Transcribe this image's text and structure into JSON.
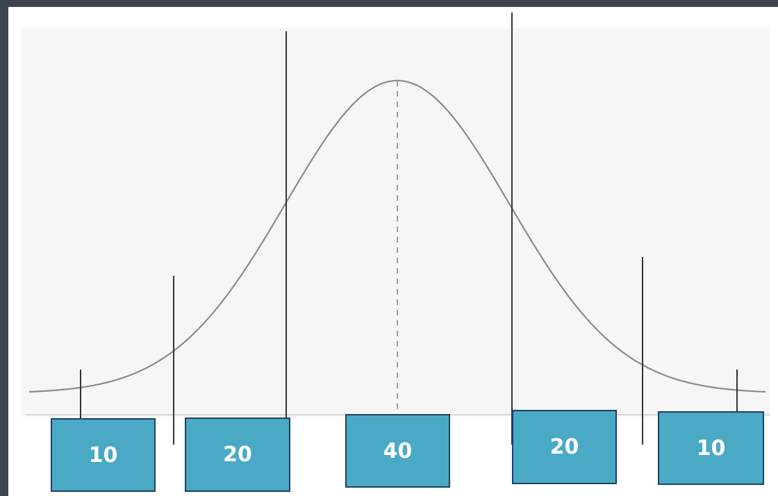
{
  "segments": [
    {
      "label": "10"
    },
    {
      "label": "20"
    },
    {
      "label": "40"
    },
    {
      "label": "20"
    },
    {
      "label": "10"
    }
  ],
  "colors": {
    "background": "#3d4450",
    "box_fill": "#4aaac5",
    "box_border": "#1f3e66",
    "curve": "#8a8a8a",
    "divider": "#333333"
  }
}
